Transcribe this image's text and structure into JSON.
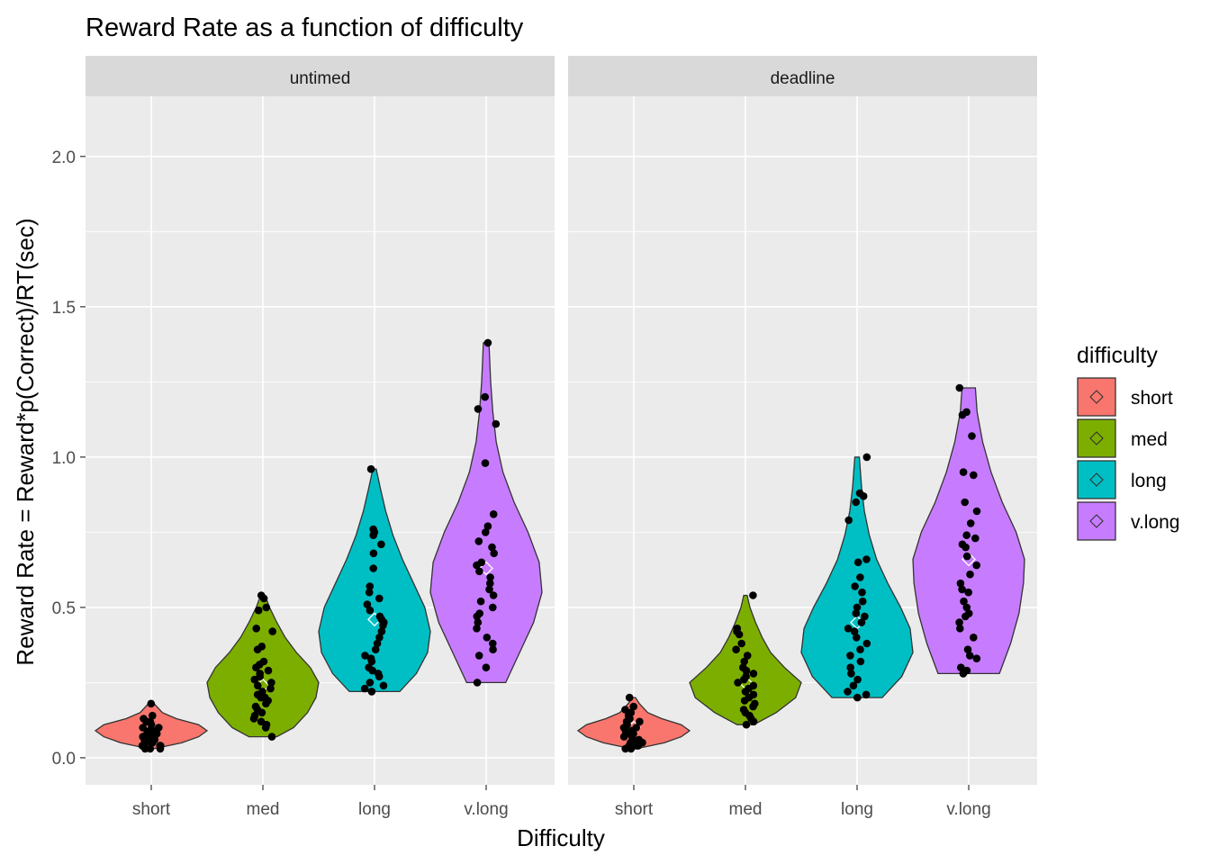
{
  "chart_data": {
    "type": "violin",
    "title": "Reward Rate as a function of difficulty",
    "xlabel": "Difficulty",
    "ylabel": "Reward Rate = Reward*p(Correct)/RT(sec)",
    "ylim": [
      -0.09,
      2.2
    ],
    "yticks": [
      "0.0",
      "0.5",
      "1.0",
      "1.5",
      "2.0"
    ],
    "ytick_values": [
      0,
      0.5,
      1.0,
      1.5,
      2.0
    ],
    "categories": [
      "short",
      "med",
      "long",
      "v.long"
    ],
    "grid": true,
    "legend": {
      "title": "difficulty",
      "position": "right",
      "entries": [
        "short",
        "med",
        "long",
        "v.long"
      ]
    },
    "colors": {
      "short": "#F8766D",
      "med": "#7CAE00",
      "long": "#00BFC4",
      "v.long": "#C77CFF",
      "panel_bg": "#EBEBEB",
      "strip_bg": "#D9D9D9",
      "grid": "#FFFFFF",
      "outline": "#333333",
      "point": "#000000"
    },
    "facets": [
      {
        "label": "untimed",
        "groups": [
          {
            "category": "short",
            "min": 0.03,
            "max": 0.18,
            "mean": 0.09,
            "profile": [
              [
                0.03,
                0.05
              ],
              [
                0.05,
                0.55
              ],
              [
                0.07,
                0.85
              ],
              [
                0.09,
                1.0
              ],
              [
                0.11,
                0.85
              ],
              [
                0.13,
                0.45
              ],
              [
                0.15,
                0.2
              ],
              [
                0.18,
                0.05
              ]
            ],
            "points": [
              0.18,
              0.14,
              0.13,
              0.12,
              0.12,
              0.11,
              0.1,
              0.1,
              0.09,
              0.09,
              0.08,
              0.08,
              0.08,
              0.07,
              0.07,
              0.06,
              0.06,
              0.06,
              0.05,
              0.05,
              0.05,
              0.04,
              0.04,
              0.04,
              0.04,
              0.03,
              0.03,
              0.03
            ]
          },
          {
            "category": "med",
            "min": 0.07,
            "max": 0.54,
            "mean": 0.24,
            "profile": [
              [
                0.07,
                0.25
              ],
              [
                0.1,
                0.55
              ],
              [
                0.15,
                0.8
              ],
              [
                0.2,
                0.95
              ],
              [
                0.25,
                1.0
              ],
              [
                0.3,
                0.85
              ],
              [
                0.35,
                0.6
              ],
              [
                0.4,
                0.4
              ],
              [
                0.45,
                0.25
              ],
              [
                0.5,
                0.12
              ],
              [
                0.54,
                0.04
              ]
            ],
            "points": [
              0.54,
              0.53,
              0.5,
              0.49,
              0.43,
              0.42,
              0.37,
              0.36,
              0.32,
              0.31,
              0.3,
              0.29,
              0.28,
              0.27,
              0.26,
              0.25,
              0.24,
              0.23,
              0.22,
              0.21,
              0.2,
              0.2,
              0.19,
              0.18,
              0.17,
              0.16,
              0.15,
              0.14,
              0.13,
              0.12,
              0.11,
              0.1,
              0.07
            ]
          },
          {
            "category": "long",
            "min": 0.22,
            "max": 0.96,
            "mean": 0.46,
            "profile": [
              [
                0.22,
                0.45
              ],
              [
                0.28,
                0.75
              ],
              [
                0.35,
                0.95
              ],
              [
                0.42,
                1.0
              ],
              [
                0.5,
                0.9
              ],
              [
                0.58,
                0.7
              ],
              [
                0.66,
                0.5
              ],
              [
                0.74,
                0.33
              ],
              [
                0.82,
                0.2
              ],
              [
                0.9,
                0.1
              ],
              [
                0.96,
                0.03
              ]
            ],
            "points": [
              0.96,
              0.76,
              0.75,
              0.74,
              0.71,
              0.68,
              0.63,
              0.57,
              0.55,
              0.53,
              0.51,
              0.49,
              0.47,
              0.46,
              0.45,
              0.44,
              0.42,
              0.4,
              0.38,
              0.36,
              0.34,
              0.33,
              0.32,
              0.3,
              0.29,
              0.28,
              0.27,
              0.25,
              0.24,
              0.23,
              0.22
            ]
          },
          {
            "category": "v.long",
            "min": 0.25,
            "max": 1.38,
            "mean": 0.63,
            "profile": [
              [
                0.25,
                0.35
              ],
              [
                0.35,
                0.6
              ],
              [
                0.45,
                0.85
              ],
              [
                0.55,
                1.0
              ],
              [
                0.65,
                0.95
              ],
              [
                0.75,
                0.75
              ],
              [
                0.85,
                0.5
              ],
              [
                0.95,
                0.3
              ],
              [
                1.05,
                0.18
              ],
              [
                1.15,
                0.12
              ],
              [
                1.25,
                0.08
              ],
              [
                1.38,
                0.05
              ]
            ],
            "points": [
              1.38,
              1.2,
              1.16,
              1.11,
              0.98,
              0.81,
              0.77,
              0.75,
              0.72,
              0.7,
              0.68,
              0.65,
              0.64,
              0.62,
              0.6,
              0.58,
              0.56,
              0.54,
              0.52,
              0.5,
              0.48,
              0.47,
              0.45,
              0.43,
              0.4,
              0.38,
              0.36,
              0.34,
              0.3,
              0.25
            ]
          }
        ]
      },
      {
        "label": "deadline",
        "groups": [
          {
            "category": "short",
            "min": 0.03,
            "max": 0.2,
            "mean": 0.1,
            "profile": [
              [
                0.03,
                0.05
              ],
              [
                0.05,
                0.55
              ],
              [
                0.07,
                0.85
              ],
              [
                0.09,
                1.0
              ],
              [
                0.11,
                0.85
              ],
              [
                0.13,
                0.5
              ],
              [
                0.15,
                0.25
              ],
              [
                0.18,
                0.1
              ],
              [
                0.2,
                0.03
              ]
            ],
            "points": [
              0.2,
              0.17,
              0.16,
              0.15,
              0.14,
              0.13,
              0.12,
              0.12,
              0.11,
              0.1,
              0.1,
              0.09,
              0.09,
              0.08,
              0.08,
              0.07,
              0.07,
              0.06,
              0.06,
              0.05,
              0.05,
              0.05,
              0.04,
              0.04,
              0.04,
              0.03,
              0.03
            ]
          },
          {
            "category": "med",
            "min": 0.11,
            "max": 0.54,
            "mean": 0.25,
            "profile": [
              [
                0.11,
                0.15
              ],
              [
                0.15,
                0.55
              ],
              [
                0.2,
                0.9
              ],
              [
                0.25,
                1.0
              ],
              [
                0.3,
                0.7
              ],
              [
                0.35,
                0.45
              ],
              [
                0.4,
                0.3
              ],
              [
                0.45,
                0.18
              ],
              [
                0.5,
                0.08
              ],
              [
                0.54,
                0.03
              ]
            ],
            "points": [
              0.54,
              0.43,
              0.42,
              0.41,
              0.38,
              0.36,
              0.34,
              0.32,
              0.3,
              0.29,
              0.28,
              0.27,
              0.26,
              0.25,
              0.24,
              0.23,
              0.22,
              0.21,
              0.2,
              0.19,
              0.18,
              0.17,
              0.16,
              0.15,
              0.14,
              0.13,
              0.12,
              0.11
            ]
          },
          {
            "category": "long",
            "min": 0.2,
            "max": 1.0,
            "mean": 0.45,
            "profile": [
              [
                0.2,
                0.45
              ],
              [
                0.27,
                0.8
              ],
              [
                0.35,
                1.0
              ],
              [
                0.43,
                0.95
              ],
              [
                0.5,
                0.78
              ],
              [
                0.58,
                0.55
              ],
              [
                0.66,
                0.35
              ],
              [
                0.74,
                0.22
              ],
              [
                0.82,
                0.13
              ],
              [
                0.9,
                0.08
              ],
              [
                1.0,
                0.04
              ]
            ],
            "points": [
              1.0,
              0.88,
              0.87,
              0.85,
              0.79,
              0.66,
              0.65,
              0.6,
              0.57,
              0.55,
              0.52,
              0.5,
              0.48,
              0.47,
              0.45,
              0.43,
              0.42,
              0.4,
              0.38,
              0.36,
              0.34,
              0.32,
              0.3,
              0.28,
              0.26,
              0.24,
              0.22,
              0.21,
              0.2
            ]
          },
          {
            "category": "v.long",
            "min": 0.28,
            "max": 1.23,
            "mean": 0.66,
            "profile": [
              [
                0.28,
                0.55
              ],
              [
                0.38,
                0.75
              ],
              [
                0.48,
                0.9
              ],
              [
                0.58,
                0.98
              ],
              [
                0.66,
                1.0
              ],
              [
                0.75,
                0.85
              ],
              [
                0.85,
                0.6
              ],
              [
                0.95,
                0.4
              ],
              [
                1.05,
                0.25
              ],
              [
                1.15,
                0.15
              ],
              [
                1.23,
                0.12
              ]
            ],
            "points": [
              1.23,
              1.15,
              1.14,
              1.07,
              0.95,
              0.94,
              0.85,
              0.82,
              0.78,
              0.74,
              0.73,
              0.71,
              0.7,
              0.67,
              0.64,
              0.61,
              0.58,
              0.56,
              0.55,
              0.52,
              0.5,
              0.48,
              0.47,
              0.45,
              0.43,
              0.4,
              0.36,
              0.34,
              0.33,
              0.3,
              0.29,
              0.28
            ]
          }
        ]
      }
    ]
  }
}
